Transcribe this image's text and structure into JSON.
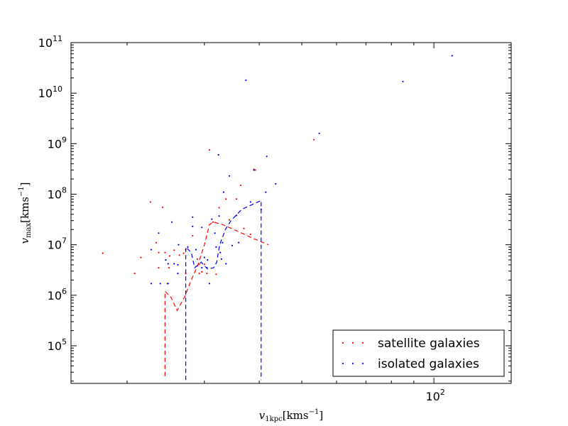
{
  "chart_data": {
    "type": "scatter",
    "title": "",
    "xlabel": "v_1kpc[kms^-1]",
    "ylabel": "v_max[kms^-1]",
    "xscale": "log",
    "yscale": "log",
    "xlim": [
      14.9,
      150
    ],
    "ylim": [
      18000,
      100000000000
    ],
    "x_ticks": [
      {
        "value": 100,
        "label": "10",
        "exp": "2"
      }
    ],
    "y_ticks": [
      {
        "value": 100000,
        "label": "10",
        "exp": "5"
      },
      {
        "value": 1000000,
        "label": "10",
        "exp": "6"
      },
      {
        "value": 10000000,
        "label": "10",
        "exp": "7"
      },
      {
        "value": 100000000,
        "label": "10",
        "exp": "8"
      },
      {
        "value": 1000000000,
        "label": "10",
        "exp": "9"
      },
      {
        "value": 10000000000,
        "label": "10",
        "exp": "10"
      },
      {
        "value": 100000000000,
        "label": "10",
        "exp": "11"
      }
    ],
    "grid": false,
    "legend_position": "lower-right",
    "series": [
      {
        "name": "satellite galaxies",
        "color": "#ff0000",
        "points": [
          [
            17.6,
            6800000
          ],
          [
            20.8,
            2700000
          ],
          [
            21.5,
            5600000
          ],
          [
            22.6,
            70000000
          ],
          [
            23.3,
            11000000
          ],
          [
            23.6,
            7000000
          ],
          [
            23.6,
            3500000
          ],
          [
            24.1,
            55000000
          ],
          [
            24.4,
            7000000
          ],
          [
            24.7,
            1700000
          ],
          [
            24.9,
            3500000
          ],
          [
            25.0,
            6000000
          ],
          [
            25.6,
            7800000
          ],
          [
            26.3,
            6200000
          ],
          [
            26.9,
            6800000
          ],
          [
            27.2,
            2700000
          ],
          [
            27.2,
            8000000
          ],
          [
            28.2,
            15000000
          ],
          [
            28.9,
            5200000
          ],
          [
            29.2,
            4100000
          ],
          [
            29.2,
            2700000
          ],
          [
            29.6,
            2900000
          ],
          [
            30.0,
            4100000
          ],
          [
            30.4,
            2700000
          ],
          [
            30.8,
            750000000
          ],
          [
            31.4,
            28000000
          ],
          [
            31.9,
            2600000
          ],
          [
            32.4,
            54000000
          ],
          [
            33.6,
            80000000
          ],
          [
            34.2,
            31000000
          ],
          [
            35.5,
            80000000
          ],
          [
            36.3,
            150000000
          ],
          [
            36.9,
            21000000
          ],
          [
            38.2,
            16000000
          ],
          [
            38.9,
            310000000
          ],
          [
            39.2,
            300000000
          ],
          [
            53.3,
            1200000000
          ]
        ],
        "trend": [
          [
            24.4,
            25000
          ],
          [
            24.4,
            1200000
          ],
          [
            25.2,
            900000
          ],
          [
            26.0,
            500000
          ],
          [
            27.0,
            900000
          ],
          [
            28.0,
            2000000
          ],
          [
            29.0,
            4000000
          ],
          [
            30.0,
            10000000
          ],
          [
            30.8,
            25000000
          ],
          [
            31.5,
            28000000
          ],
          [
            33.0,
            25000000
          ],
          [
            35.0,
            20000000
          ],
          [
            37.0,
            16000000
          ],
          [
            39.0,
            13000000
          ],
          [
            42.0,
            10000000
          ]
        ]
      },
      {
        "name": "isolated galaxies",
        "color": "#0000ff",
        "points": [
          [
            22.7,
            8000000
          ],
          [
            22.7,
            1700000
          ],
          [
            23.6,
            17000000
          ],
          [
            23.8,
            1700000
          ],
          [
            24.5,
            5000000
          ],
          [
            24.8,
            4200000
          ],
          [
            24.8,
            1700000
          ],
          [
            25.3,
            28000000
          ],
          [
            25.6,
            4200000
          ],
          [
            26.1,
            2700000
          ],
          [
            26.1,
            4000000
          ],
          [
            26.2,
            10000000
          ],
          [
            27.5,
            9000000
          ],
          [
            28.2,
            35000000
          ],
          [
            28.2,
            23000000
          ],
          [
            28.7,
            8000000
          ],
          [
            29.6,
            22000000
          ],
          [
            29.6,
            3500000
          ],
          [
            30.0,
            5600000
          ],
          [
            30.4,
            3500000
          ],
          [
            30.5,
            5000000
          ],
          [
            30.8,
            1700000
          ],
          [
            31.2,
            32000000
          ],
          [
            31.7,
            17000000
          ],
          [
            31.9,
            9000000
          ],
          [
            32.3,
            600000000
          ],
          [
            32.4,
            37000000
          ],
          [
            32.6,
            7000000
          ],
          [
            32.8,
            5200000
          ],
          [
            33.0,
            11000000
          ],
          [
            33.2,
            110000000
          ],
          [
            33.6,
            4200000
          ],
          [
            34.2,
            230000000
          ],
          [
            34.7,
            9600000
          ],
          [
            35.5,
            38000000
          ],
          [
            35.9,
            11000000
          ],
          [
            37.3,
            18000000000
          ],
          [
            38.2,
            70000000
          ],
          [
            38.9,
            300000000
          ],
          [
            40.4,
            50000000
          ],
          [
            41.4,
            110000000
          ],
          [
            41.6,
            560000000
          ],
          [
            43.6,
            160000000
          ],
          [
            54.8,
            1600000000
          ],
          [
            85.0,
            17000000000
          ],
          [
            110.0,
            55000000000
          ]
        ],
        "trend": [
          [
            27.2,
            21000
          ],
          [
            27.2,
            9000000
          ],
          [
            28.0,
            7000000
          ],
          [
            28.5,
            3500000
          ],
          [
            29.5,
            4500000
          ],
          [
            30.5,
            3300000
          ],
          [
            31.5,
            3500000
          ],
          [
            32.0,
            4500000
          ],
          [
            32.5,
            10000000
          ],
          [
            33.5,
            20000000
          ],
          [
            34.5,
            30000000
          ],
          [
            36.5,
            50000000
          ],
          [
            40.4,
            75000000
          ],
          [
            40.4,
            21000
          ]
        ]
      }
    ]
  }
}
